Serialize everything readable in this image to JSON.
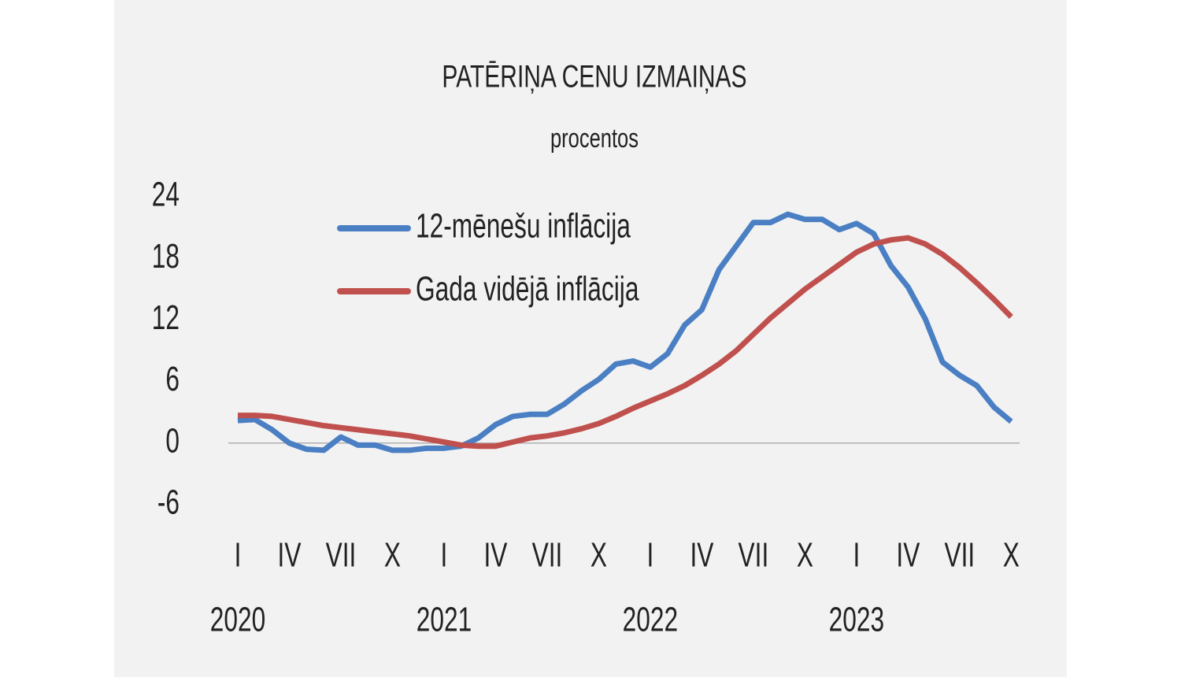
{
  "chart_data": {
    "type": "line",
    "title": "PATĒRIŅA CENU IZMAIŅAS",
    "subtitle": "procentos",
    "categories": [
      "I",
      null,
      null,
      "IV",
      null,
      null,
      "VII",
      null,
      null,
      "X",
      null,
      null,
      "I",
      null,
      null,
      "IV",
      null,
      null,
      "VII",
      null,
      null,
      "X",
      null,
      null,
      "I",
      null,
      null,
      "IV",
      null,
      null,
      "VII",
      null,
      null,
      "X",
      null,
      null,
      "I",
      null,
      null,
      "IV",
      null,
      null,
      "VII",
      null,
      null,
      "X"
    ],
    "years": [
      "2020",
      "2021",
      "2022",
      "2023"
    ],
    "series": [
      {
        "name": "12-mēnešu inflācija",
        "color": "#4a7fc4",
        "values": [
          2.2,
          2.3,
          1.3,
          0.0,
          -0.6,
          -0.7,
          0.6,
          -0.2,
          -0.2,
          -0.7,
          -0.7,
          -0.5,
          -0.5,
          -0.3,
          0.5,
          1.8,
          2.6,
          2.8,
          2.8,
          3.8,
          5.1,
          6.2,
          7.7,
          8.0,
          7.4,
          8.7,
          11.5,
          13.0,
          16.9,
          19.2,
          21.5,
          21.5,
          22.3,
          21.8,
          21.8,
          20.8,
          21.4,
          20.4,
          17.3,
          15.2,
          12.1,
          7.9,
          6.6,
          5.6,
          3.5,
          2.1
        ]
      },
      {
        "name": "Gada vidējā inflācija",
        "color": "#c0504d",
        "values": [
          2.7,
          2.7,
          2.6,
          2.3,
          2.0,
          1.7,
          1.5,
          1.3,
          1.1,
          0.9,
          0.7,
          0.4,
          0.1,
          -0.2,
          -0.3,
          -0.3,
          0.1,
          0.5,
          0.7,
          1.0,
          1.4,
          1.9,
          2.6,
          3.4,
          4.1,
          4.8,
          5.6,
          6.6,
          7.7,
          9.0,
          10.6,
          12.2,
          13.6,
          15.0,
          16.2,
          17.4,
          18.6,
          19.4,
          19.8,
          20.0,
          19.4,
          18.4,
          17.1,
          15.6,
          14.0,
          12.3
        ]
      }
    ],
    "ylim": [
      -6,
      24
    ],
    "yticks": [
      -6,
      0,
      6,
      12,
      18,
      24
    ]
  }
}
